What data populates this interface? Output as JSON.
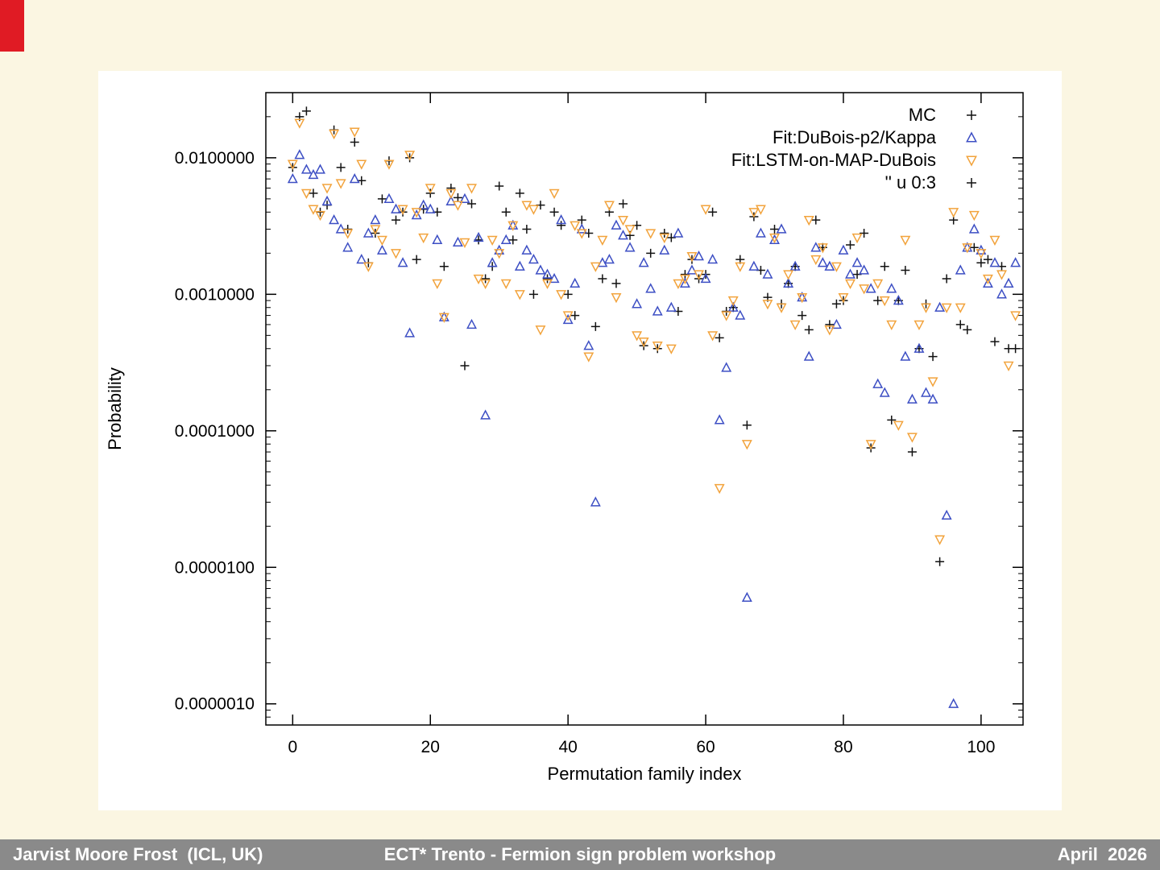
{
  "slide": {
    "accent_color": "#e01b24",
    "footer": {
      "left": "Jarvist Moore Frost  (ICL, UK)",
      "center": "ECT* Trento - Fermion sign problem workshop",
      "right": "April  2026"
    }
  },
  "chart_data": {
    "type": "scatter",
    "title": "",
    "xlabel": "Permutation family index",
    "ylabel": "Probability",
    "y_scale": "log",
    "xlim": [
      -3.9,
      106.1
    ],
    "ylim": [
      7e-07,
      0.03
    ],
    "grid": false,
    "legend_position": "top-right",
    "x_ticks": [
      {
        "label": "0",
        "value": 0
      },
      {
        "label": "20",
        "value": 20
      },
      {
        "label": "40",
        "value": 40
      },
      {
        "label": "60",
        "value": 60
      },
      {
        "label": "80",
        "value": 80
      },
      {
        "label": "100",
        "value": 100
      }
    ],
    "y_ticks": [
      {
        "label": "0.0100000",
        "value": 0.01
      },
      {
        "label": "0.0010000",
        "value": 0.001
      },
      {
        "label": "0.0001000",
        "value": 0.0001
      },
      {
        "label": "0.0000100",
        "value": 1e-05
      },
      {
        "label": "0.0000010",
        "value": 1e-06
      }
    ],
    "x_shared": [
      0,
      1,
      2,
      3,
      4,
      5,
      6,
      7,
      8,
      9,
      10,
      11,
      12,
      13,
      14,
      15,
      16,
      17,
      18,
      19,
      20,
      21,
      22,
      23,
      24,
      25,
      26,
      27,
      28,
      29,
      30,
      31,
      32,
      33,
      34,
      35,
      36,
      37,
      38,
      39,
      40,
      41,
      42,
      43,
      44,
      45,
      46,
      47,
      48,
      49,
      50,
      51,
      52,
      53,
      54,
      55,
      56,
      57,
      58,
      59,
      60,
      61,
      62,
      63,
      64,
      65,
      66,
      67,
      68,
      69,
      70,
      71,
      72,
      73,
      74,
      75,
      76,
      77,
      78,
      79,
      80,
      81,
      82,
      83,
      84,
      85,
      86,
      87,
      88,
      89,
      90,
      91,
      92,
      93,
      94,
      95,
      96,
      97,
      98,
      99,
      100,
      101,
      102,
      103,
      104,
      105
    ],
    "series": [
      {
        "name": "MC",
        "marker": "plus",
        "color": "#111111",
        "y": [
          0.0085,
          0.02,
          0.022,
          0.0055,
          0.004,
          0.0045,
          0.016,
          0.0085,
          0.003,
          0.013,
          0.0068,
          0.0017,
          0.0028,
          0.005,
          0.0095,
          0.0035,
          0.004,
          0.01,
          0.0018,
          0.0042,
          0.0055,
          0.004,
          0.0016,
          0.006,
          0.0051,
          0.0003,
          0.0046,
          0.0025,
          0.0013,
          0.0016,
          0.0062,
          0.004,
          0.0025,
          0.0055,
          0.003,
          0.001,
          0.0045,
          0.0013,
          0.004,
          0.0032,
          0.001,
          0.0007,
          0.0035,
          0.0028,
          0.00058,
          0.0013,
          0.004,
          0.0012,
          0.0046,
          0.0027,
          0.0032,
          0.00042,
          0.002,
          0.0004,
          0.0028,
          0.0026,
          0.00075,
          0.0014,
          0.0018,
          0.0013,
          0.0014,
          0.004,
          0.00048,
          0.00075,
          0.0008,
          0.0018,
          0.00011,
          0.0037,
          0.0015,
          0.00095,
          0.003,
          0.00085,
          0.0012,
          0.0016,
          0.0007,
          0.00055,
          0.0035,
          0.0022,
          0.0006,
          0.00085,
          0.0009,
          0.0023,
          0.0014,
          0.0028,
          7.5e-05,
          0.0009,
          0.0016,
          0.00012,
          0.0009,
          0.0015,
          7e-05,
          0.0004,
          0.00085,
          0.00035,
          1.1e-05,
          0.0013,
          0.0035,
          0.0006,
          0.00055,
          0.0022,
          0.0017,
          0.0018,
          0.00045,
          0.0016,
          0.0004,
          0.0004
        ]
      },
      {
        "name": "Fit:DuBois-p2/Kappa",
        "marker": "triangle-up",
        "color": "#3d4fc4",
        "y": [
          0.007,
          0.0105,
          0.0082,
          0.0075,
          0.0082,
          0.0048,
          0.0035,
          0.003,
          0.0022,
          0.007,
          0.0018,
          0.0028,
          0.0035,
          0.0021,
          0.005,
          0.0042,
          0.0017,
          0.00052,
          0.0038,
          0.0045,
          0.0042,
          0.0025,
          0.00068,
          0.0048,
          0.0024,
          0.005,
          0.0006,
          0.0026,
          0.00013,
          0.0017,
          0.0021,
          0.0025,
          0.0032,
          0.0016,
          0.0021,
          0.0018,
          0.0015,
          0.0014,
          0.0013,
          0.0035,
          0.00065,
          0.0012,
          0.003,
          0.00042,
          3e-05,
          0.0017,
          0.0018,
          0.0032,
          0.0027,
          0.0022,
          0.00085,
          0.0017,
          0.0011,
          0.00075,
          0.0021,
          0.0008,
          0.0028,
          0.0012,
          0.0015,
          0.0019,
          0.0013,
          0.0018,
          0.00012,
          0.00029,
          0.0008,
          0.0007,
          6e-06,
          0.0016,
          0.0028,
          0.0014,
          0.0025,
          0.003,
          0.0012,
          0.0016,
          0.00095,
          0.00035,
          0.0022,
          0.0017,
          0.0016,
          0.0006,
          0.0021,
          0.0014,
          0.0017,
          0.0015,
          0.0011,
          0.00022,
          0.00019,
          0.0011,
          0.0009,
          0.00035,
          0.00017,
          0.0004,
          0.00019,
          0.00017,
          0.0008,
          2.4e-05,
          1e-06,
          0.0015,
          0.0022,
          0.003,
          0.0021,
          0.0012,
          0.0017,
          0.001,
          0.0012,
          0.0017
        ]
      },
      {
        "name": "Fit:LSTM-on-MAP-DuBois",
        "marker": "triangle-down",
        "color": "#f2a33c",
        "y": [
          0.009,
          0.018,
          0.0055,
          0.0042,
          0.0038,
          0.006,
          0.015,
          0.0065,
          0.0028,
          0.0155,
          0.009,
          0.0016,
          0.003,
          0.0025,
          0.009,
          0.002,
          0.0042,
          0.0105,
          0.004,
          0.0026,
          0.006,
          0.0012,
          0.00068,
          0.0055,
          0.0045,
          0.0024,
          0.006,
          0.0013,
          0.0012,
          0.0025,
          0.002,
          0.0012,
          0.0032,
          0.001,
          0.0045,
          0.0042,
          0.00055,
          0.0012,
          0.0055,
          0.001,
          0.0007,
          0.0032,
          0.0028,
          0.00035,
          0.0016,
          0.0025,
          0.0045,
          0.00095,
          0.0035,
          0.003,
          0.0005,
          0.00045,
          0.0028,
          0.00042,
          0.0026,
          0.0004,
          0.0012,
          0.0013,
          0.0019,
          0.0014,
          0.0042,
          0.0005,
          3.8e-05,
          0.0007,
          0.0009,
          0.0016,
          8e-05,
          0.004,
          0.0042,
          0.00085,
          0.0026,
          0.0008,
          0.0014,
          0.0006,
          0.00095,
          0.0035,
          0.0018,
          0.0022,
          0.00055,
          0.0016,
          0.00095,
          0.0012,
          0.0026,
          0.0011,
          8e-05,
          0.0012,
          0.0009,
          0.0006,
          0.00011,
          0.0025,
          9e-05,
          0.0006,
          0.0008,
          0.00023,
          1.6e-05,
          0.0008,
          0.004,
          0.0008,
          0.0022,
          0.0038,
          0.002,
          0.0013,
          0.0025,
          0.0014,
          0.0003,
          0.0007
        ]
      },
      {
        "name": "'' u 0:3",
        "marker": "plus",
        "color": "#111111",
        "y": []
      }
    ]
  }
}
